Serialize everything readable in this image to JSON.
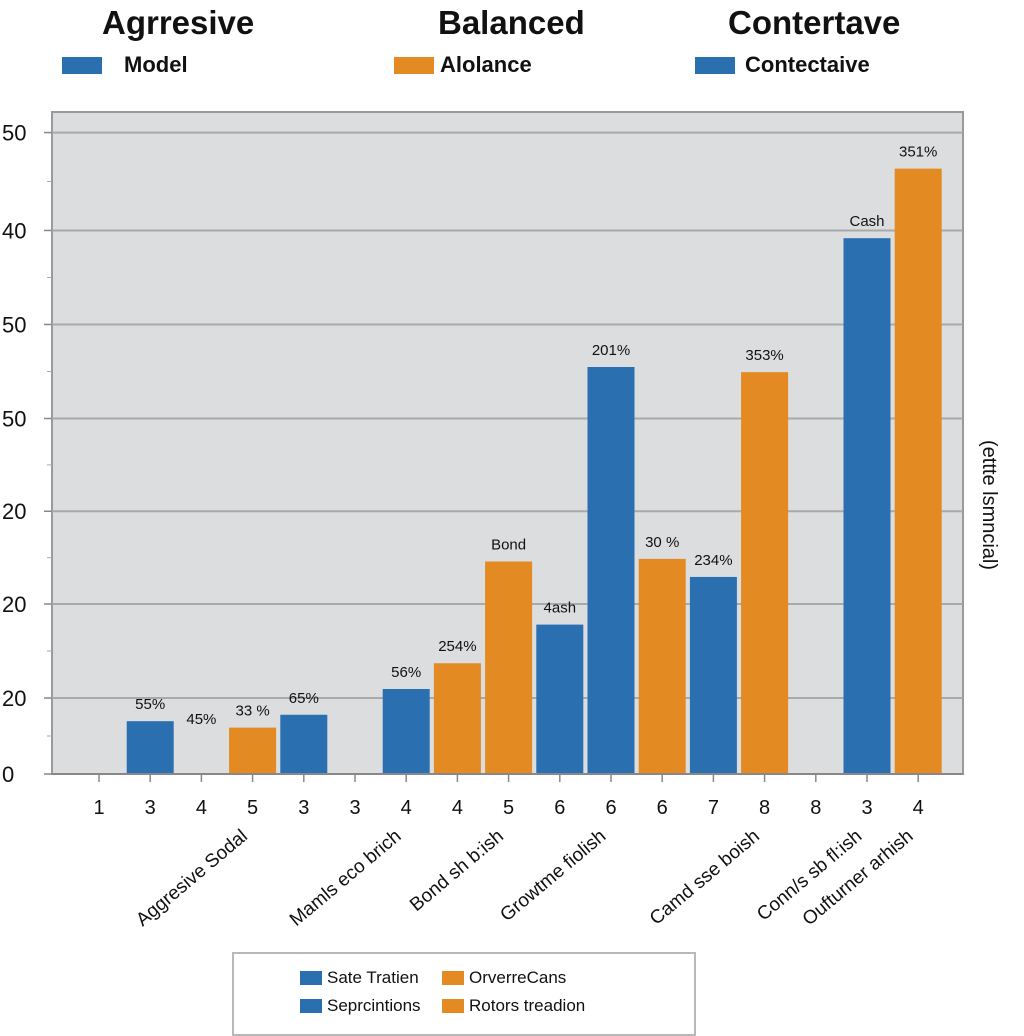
{
  "header": {
    "titles": [
      "Agrresive",
      "Balanced",
      "Contertave"
    ],
    "legend": [
      {
        "label": "Model",
        "color": "#2a6fb0"
      },
      {
        "label": "Alolance",
        "color": "#e38a22"
      },
      {
        "label": "Contectaive",
        "color": "#2a6fb0"
      }
    ]
  },
  "side_label": "(ettte lsmncial)",
  "bottom_legend": [
    {
      "label": "Sate Tratien",
      "color": "#2a6fb0"
    },
    {
      "label": "OrverreCans",
      "color": "#e38a22"
    },
    {
      "label": "Seprcintions",
      "color": "#2a6fb0"
    },
    {
      "label": "Rotors treadion",
      "color": "#e38a22"
    }
  ],
  "chart_data": {
    "type": "bar",
    "title": "",
    "xlabel": "",
    "ylabel": "(ettte lsmncial)",
    "ylim": [
      0,
      50
    ],
    "grid": true,
    "y_ticks": [
      {
        "label": "0",
        "value": 0
      },
      {
        "label": "20",
        "value": 5.9
      },
      {
        "label": "20",
        "value": 13.2
      },
      {
        "label": "20",
        "value": 20.4
      },
      {
        "label": "50",
        "value": 27.6
      },
      {
        "label": "50",
        "value": 34.9
      },
      {
        "label": "40",
        "value": 42.2
      },
      {
        "label": "50",
        "value": 49.8
      }
    ],
    "categories": [
      "1",
      "3",
      "4",
      "5",
      "3",
      "3",
      "4",
      "4",
      "5",
      "6",
      "6",
      "6",
      "7",
      "8",
      "8",
      "3",
      "4"
    ],
    "series_colors": {
      "blue": "#2a6fb0",
      "orange": "#e38a22"
    },
    "bars": [
      {
        "category_index": 1,
        "series": "blue",
        "value": 4.1,
        "label": "55%"
      },
      {
        "category_index": 2,
        "series": "none",
        "value": 0,
        "label": "45%"
      },
      {
        "category_index": 3,
        "series": "orange",
        "value": 3.6,
        "label": "33 %"
      },
      {
        "category_index": 4,
        "series": "blue",
        "value": 4.6,
        "label": "65%"
      },
      {
        "category_index": 6,
        "series": "blue",
        "value": 6.6,
        "label": "56%"
      },
      {
        "category_index": 7,
        "series": "orange",
        "value": 8.6,
        "label": "254%"
      },
      {
        "category_index": 8,
        "series": "orange",
        "value": 16.5,
        "label": "Bond"
      },
      {
        "category_index": 9,
        "series": "blue",
        "value": 11.6,
        "label": "4ash"
      },
      {
        "category_index": 10,
        "series": "blue",
        "value": 31.6,
        "label": "201%"
      },
      {
        "category_index": 11,
        "series": "orange",
        "value": 16.7,
        "label": "30 %"
      },
      {
        "category_index": 12,
        "series": "blue",
        "value": 15.3,
        "label": "234%"
      },
      {
        "category_index": 13,
        "series": "orange",
        "value": 31.2,
        "label": "353%"
      },
      {
        "category_index": 15,
        "series": "blue",
        "value": 41.6,
        "label": "Cash"
      },
      {
        "category_index": 16,
        "series": "orange",
        "value": 47.0,
        "label": "351%"
      }
    ],
    "group_labels": [
      {
        "label": "Aggresive Sodal",
        "anchor_index": 3
      },
      {
        "label": "Mamls eco brich",
        "anchor_index": 6
      },
      {
        "label": "Bond sh b:ish",
        "anchor_index": 8
      },
      {
        "label": "Growtme fiolish",
        "anchor_index": 10
      },
      {
        "label": "Camd sse boish",
        "anchor_index": 13
      },
      {
        "label": "Conn/s sb fl:ish",
        "anchor_index": 15
      },
      {
        "label": "Oufturner arhish",
        "anchor_index": 16
      }
    ]
  }
}
